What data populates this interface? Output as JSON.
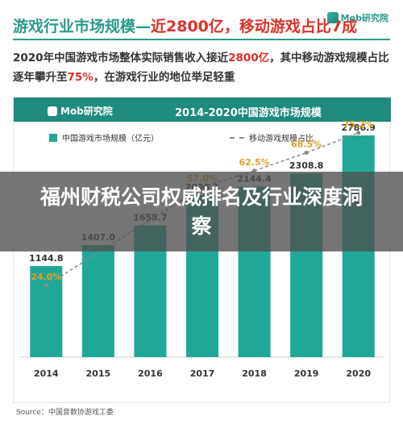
{
  "headline": {
    "prefix": "游戏行业市场规模—",
    "highlight": "近2800亿，移动游戏占比7成"
  },
  "brand": {
    "top_logo": "Mob研究院",
    "header_logo": "Mob研究院"
  },
  "subtext": {
    "part1": "2020年中国游戏市场整体实际销售收入接近",
    "amount": "2800亿",
    "part2": "，其中移动游戏规模占比逐年攀升至",
    "percent": "75%",
    "part3": "，在游戏行业的地位举足轻重"
  },
  "chart_data": {
    "type": "bar",
    "title": "2014-2020中国游戏市场规模",
    "categories": [
      "2014",
      "2015",
      "2016",
      "2017",
      "2018",
      "2019",
      "2020"
    ],
    "series": [
      {
        "name": "中国游戏市场规模（亿元）",
        "type": "bar",
        "values": [
          1144.8,
          1407.0,
          1655.7,
          2036.1,
          2144.4,
          2308.8,
          2786.9
        ],
        "labels": [
          "1144.8",
          "1407.0",
          "1655.7",
          "2036.1",
          "2144.4",
          "2308.8",
          "2786.9"
        ],
        "color": "#1fa896"
      },
      {
        "name": "移动游戏规模占比",
        "type": "line",
        "values": [
          24.0,
          null,
          null,
          57.0,
          62.5,
          68.5,
          75.2
        ],
        "labels": [
          "24.0%",
          "",
          "",
          "57.0%",
          "62.5%",
          "68.5%",
          "75.2%"
        ],
        "color": "#8a8a8a",
        "style": "dashed"
      }
    ],
    "ylim": [
      0,
      3000
    ],
    "ylim_secondary": [
      0,
      80
    ],
    "legend_position": "top",
    "grid": false
  },
  "source": "Source：中国音数协游戏工委",
  "overlay": {
    "text": "福州财税公司权威排名及行业深度洞察"
  }
}
